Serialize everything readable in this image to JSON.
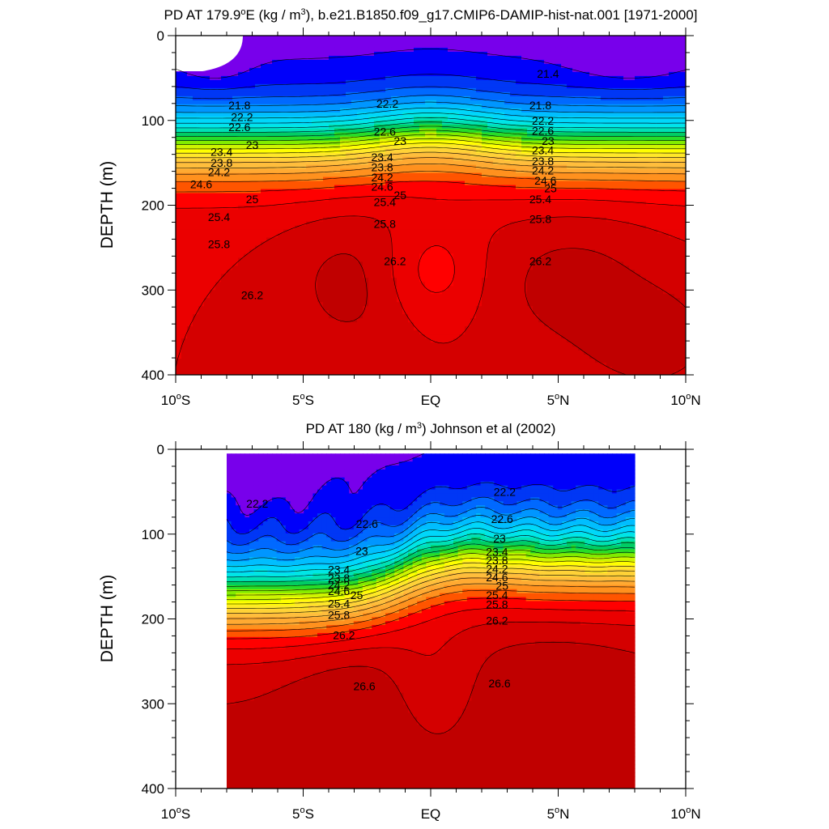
{
  "chart_data": [
    {
      "type": "contour",
      "title": "PD AT 179.9°E (kg / m3), b.e21.B1850.f09_g17.CMIP6-DAMIP-hist-nat.001 [1971-2000]",
      "title_parts": {
        "pre": "PD AT 179.9",
        "sup1": "o",
        "mid": "E (kg / m",
        "sup2": "3",
        "post": "), b.e21.B1850.f09_g17.CMIP6-DAMIP-hist-nat.001 [1971-2000]"
      },
      "xlabel": "",
      "ylabel": "DEPTH (m)",
      "xlim": [
        -10,
        10
      ],
      "ylim": [
        400,
        0
      ],
      "x_ticks": [
        {
          "value": -10,
          "label": "10",
          "deg": "o",
          "hemi": "S"
        },
        {
          "value": -5,
          "label": "5",
          "deg": "o",
          "hemi": "S"
        },
        {
          "value": 0,
          "label": "EQ",
          "deg": "",
          "hemi": ""
        },
        {
          "value": 5,
          "label": "5",
          "deg": "o",
          "hemi": "N"
        },
        {
          "value": 10,
          "label": "10",
          "deg": "o",
          "hemi": "N"
        }
      ],
      "y_ticks": [
        {
          "value": 0,
          "label": "0"
        },
        {
          "value": 100,
          "label": "100"
        },
        {
          "value": 200,
          "label": "200"
        },
        {
          "value": 300,
          "label": "300"
        },
        {
          "value": 400,
          "label": "400"
        }
      ],
      "data_lon_range": [
        -10,
        10
      ],
      "contour_levels": [
        21.0,
        21.2,
        21.4,
        21.6,
        21.8,
        22.0,
        22.2,
        22.4,
        22.6,
        22.8,
        23.0,
        23.2,
        23.4,
        23.6,
        23.8,
        24.0,
        24.2,
        24.4,
        24.6,
        24.8,
        25.0,
        25.2,
        25.4,
        25.6,
        25.8,
        26.0,
        26.2,
        26.4,
        26.6,
        26.8
      ],
      "contour_labels": [
        {
          "text": "21.4",
          "lon": 4.6,
          "depth": 45
        },
        {
          "text": "21.8",
          "lon": -7.5,
          "depth": 82
        },
        {
          "text": "21.8",
          "lon": 4.3,
          "depth": 82
        },
        {
          "text": "22.2",
          "lon": -7.4,
          "depth": 96
        },
        {
          "text": "22.2",
          "lon": -1.7,
          "depth": 80
        },
        {
          "text": "22.2",
          "lon": 4.4,
          "depth": 100
        },
        {
          "text": "22.6",
          "lon": -7.5,
          "depth": 108
        },
        {
          "text": "22.6",
          "lon": -1.8,
          "depth": 113
        },
        {
          "text": "22.6",
          "lon": 4.4,
          "depth": 112
        },
        {
          "text": "23",
          "lon": -7.0,
          "depth": 129
        },
        {
          "text": "23",
          "lon": -1.2,
          "depth": 124
        },
        {
          "text": "23",
          "lon": 4.6,
          "depth": 124
        },
        {
          "text": "23.4",
          "lon": -8.2,
          "depth": 137
        },
        {
          "text": "23.4",
          "lon": -1.9,
          "depth": 143
        },
        {
          "text": "23.4",
          "lon": 4.4,
          "depth": 135
        },
        {
          "text": "23.8",
          "lon": -8.2,
          "depth": 150
        },
        {
          "text": "23.8",
          "lon": -1.9,
          "depth": 155
        },
        {
          "text": "23.8",
          "lon": 4.4,
          "depth": 148
        },
        {
          "text": "24.2",
          "lon": -8.3,
          "depth": 161
        },
        {
          "text": "24.2",
          "lon": -1.9,
          "depth": 167
        },
        {
          "text": "24.2",
          "lon": 4.4,
          "depth": 159
        },
        {
          "text": "24.6",
          "lon": -9.0,
          "depth": 175
        },
        {
          "text": "24.6",
          "lon": -1.9,
          "depth": 178
        },
        {
          "text": "24.6",
          "lon": 4.5,
          "depth": 171
        },
        {
          "text": "25",
          "lon": -7.0,
          "depth": 193
        },
        {
          "text": "25",
          "lon": -1.2,
          "depth": 188
        },
        {
          "text": "25",
          "lon": 4.7,
          "depth": 180
        },
        {
          "text": "25.4",
          "lon": -8.3,
          "depth": 214
        },
        {
          "text": "25.4",
          "lon": -1.8,
          "depth": 196
        },
        {
          "text": "25.4",
          "lon": 4.3,
          "depth": 193
        },
        {
          "text": "25.8",
          "lon": -8.3,
          "depth": 246
        },
        {
          "text": "25.8",
          "lon": -1.8,
          "depth": 222
        },
        {
          "text": "25.8",
          "lon": 4.3,
          "depth": 216
        },
        {
          "text": "26.2",
          "lon": -7.0,
          "depth": 306
        },
        {
          "text": "26.2",
          "lon": -1.4,
          "depth": 266
        },
        {
          "text": "26.2",
          "lon": 4.3,
          "depth": 266
        }
      ]
    },
    {
      "type": "contour",
      "title": "PD AT 180 (kg / m3) Johnson et al (2002)",
      "title_parts": {
        "pre": "PD AT 180 (kg / m",
        "sup1": "3",
        "mid": ") Johnson et al (2002)",
        "sup2": "",
        "post": ""
      },
      "xlabel": "",
      "ylabel": "DEPTH (m)",
      "xlim": [
        -10,
        10
      ],
      "ylim": [
        400,
        0
      ],
      "x_ticks": [
        {
          "value": -10,
          "label": "10",
          "deg": "o",
          "hemi": "S"
        },
        {
          "value": -5,
          "label": "5",
          "deg": "o",
          "hemi": "S"
        },
        {
          "value": 0,
          "label": "EQ",
          "deg": "",
          "hemi": ""
        },
        {
          "value": 5,
          "label": "5",
          "deg": "o",
          "hemi": "N"
        },
        {
          "value": 10,
          "label": "10",
          "deg": "o",
          "hemi": "N"
        }
      ],
      "y_ticks": [
        {
          "value": 0,
          "label": "0"
        },
        {
          "value": 100,
          "label": "100"
        },
        {
          "value": 200,
          "label": "200"
        },
        {
          "value": 300,
          "label": "300"
        },
        {
          "value": 400,
          "label": "400"
        }
      ],
      "data_lon_range": [
        -8,
        8
      ],
      "data_depth_range": [
        5,
        400
      ],
      "contour_levels": [
        21.6,
        21.8,
        22.0,
        22.2,
        22.4,
        22.6,
        22.8,
        23.0,
        23.2,
        23.4,
        23.6,
        23.8,
        24.0,
        24.2,
        24.4,
        24.6,
        24.8,
        25.0,
        25.2,
        25.4,
        25.6,
        25.8,
        26.0,
        26.2,
        26.4,
        26.6,
        26.8
      ],
      "contour_labels": [
        {
          "text": "22.2",
          "lon": -6.8,
          "depth": 64
        },
        {
          "text": "22.2",
          "lon": 2.9,
          "depth": 50
        },
        {
          "text": "22.6",
          "lon": -2.5,
          "depth": 88
        },
        {
          "text": "22.6",
          "lon": 2.8,
          "depth": 82
        },
        {
          "text": "23",
          "lon": -2.7,
          "depth": 120
        },
        {
          "text": "23",
          "lon": 2.7,
          "depth": 105
        },
        {
          "text": "23.4",
          "lon": -3.6,
          "depth": 142
        },
        {
          "text": "23.4",
          "lon": 2.6,
          "depth": 121
        },
        {
          "text": "23.8",
          "lon": -3.6,
          "depth": 152
        },
        {
          "text": "23.8",
          "lon": 2.6,
          "depth": 131
        },
        {
          "text": "24.2",
          "lon": -3.6,
          "depth": 160
        },
        {
          "text": "24.2",
          "lon": 2.6,
          "depth": 141
        },
        {
          "text": "24.6",
          "lon": -3.6,
          "depth": 167
        },
        {
          "text": "24.6",
          "lon": 2.6,
          "depth": 151
        },
        {
          "text": "25",
          "lon": -2.9,
          "depth": 172
        },
        {
          "text": "25",
          "lon": 2.8,
          "depth": 161
        },
        {
          "text": "25.4",
          "lon": -3.6,
          "depth": 182
        },
        {
          "text": "25.4",
          "lon": 2.6,
          "depth": 172
        },
        {
          "text": "25.8",
          "lon": -3.6,
          "depth": 195
        },
        {
          "text": "25.8",
          "lon": 2.6,
          "depth": 183
        },
        {
          "text": "26.2",
          "lon": -3.4,
          "depth": 219
        },
        {
          "text": "26.2",
          "lon": 2.6,
          "depth": 202
        },
        {
          "text": "26.6",
          "lon": -2.6,
          "depth": 279
        },
        {
          "text": "26.6",
          "lon": 2.7,
          "depth": 276
        }
      ]
    }
  ]
}
